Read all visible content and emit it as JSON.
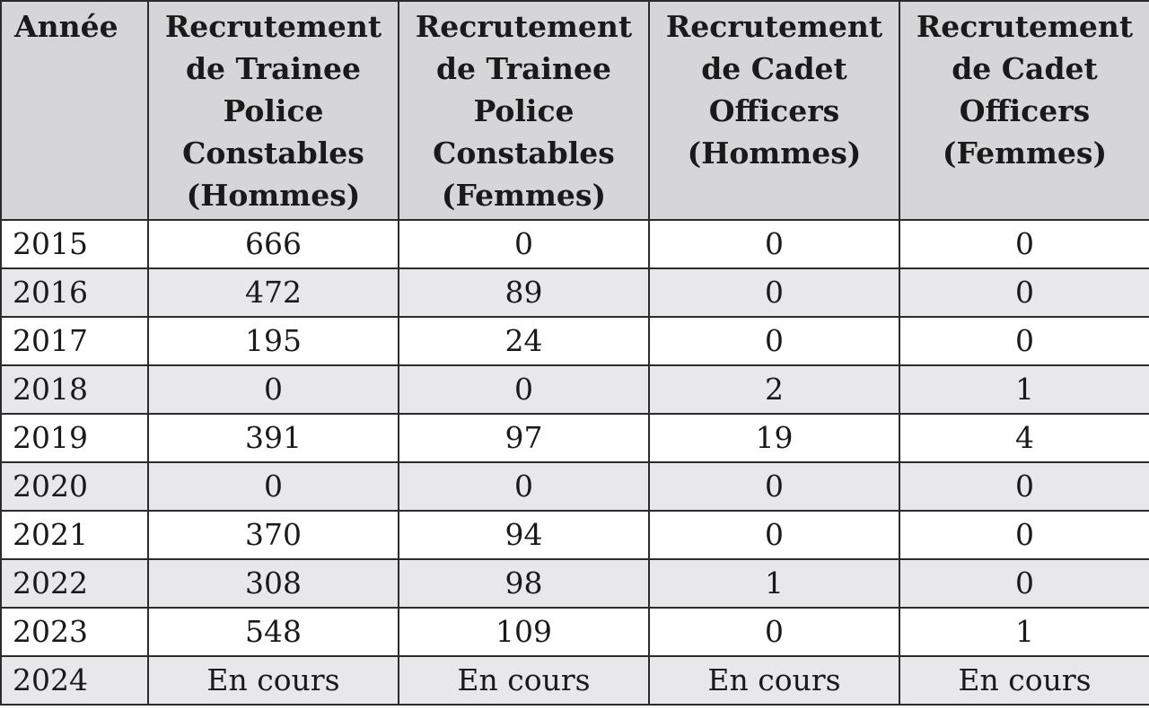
{
  "table": {
    "headers": [
      "Année",
      "Recrutement\nde Trainee\nPolice\nConstables\n(Hommes)",
      "Recrutement\nde Trainee\nPolice\nConstables\n(Femmes)",
      "Recrutement\nde Cadet\nOfficers\n(Hommes)",
      "Recrutement\nde Cadet\nOfficers\n(Femmes)"
    ],
    "rows": [
      [
        "2015",
        "666",
        "0",
        "0",
        "0"
      ],
      [
        "2016",
        "472",
        "89",
        "0",
        "0"
      ],
      [
        "2017",
        "195",
        "24",
        "0",
        "0"
      ],
      [
        "2018",
        "0",
        "0",
        "2",
        "1"
      ],
      [
        "2019",
        "391",
        "97",
        "19",
        "4"
      ],
      [
        "2020",
        "0",
        "0",
        "0",
        "0"
      ],
      [
        "2021",
        "370",
        "94",
        "0",
        "0"
      ],
      [
        "2022",
        "308",
        "98",
        "1",
        "0"
      ],
      [
        "2023",
        "548",
        "109",
        "0",
        "1"
      ],
      [
        "2024",
        "En cours",
        "En cours",
        "En cours",
        "En cours"
      ]
    ]
  },
  "colors": {
    "header_bg": "#d6d6d8",
    "alt_row_bg": "#e8e8ea",
    "border": "#2b2b2b"
  }
}
